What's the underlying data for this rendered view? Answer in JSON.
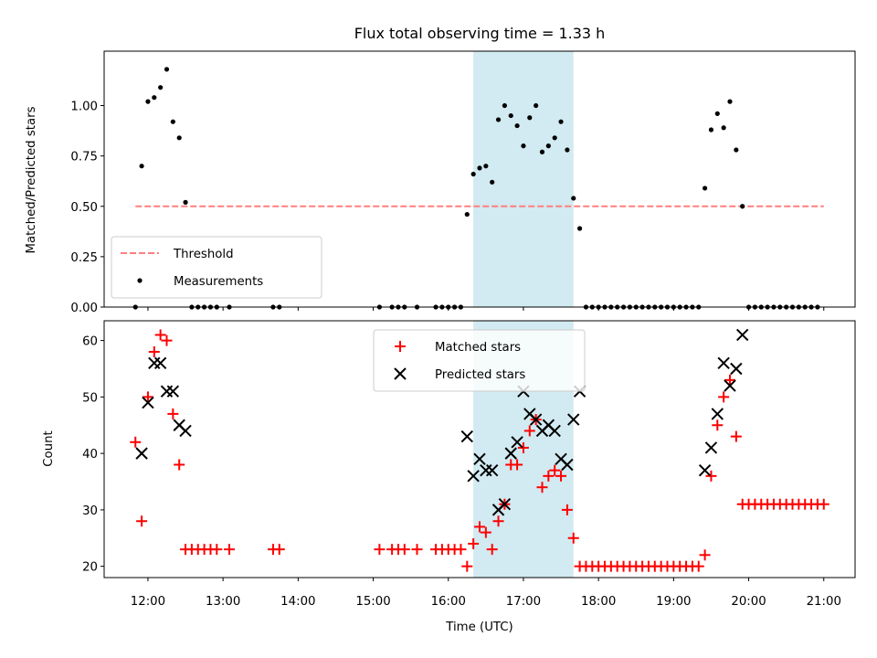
{
  "chart_data": [
    {
      "type": "scatter",
      "title": "Flux total observing time = 1.33 h",
      "xlabel": "",
      "ylabel": "Matched/Predicted stars",
      "xlim": [
        "11:25",
        "21:25"
      ],
      "ylim": [
        0,
        1.27
      ],
      "yticks": [
        "0.00",
        "0.25",
        "0.50",
        "0.75",
        "1.00"
      ],
      "highlight_span": {
        "x_start": "16:20",
        "x_end": "17:40",
        "color": "#add8e6"
      },
      "threshold": {
        "name": "Threshold",
        "y": 0.5,
        "x_start": "11:50",
        "x_end": "21:00",
        "color": "#ff7f7f",
        "style": "dashed"
      },
      "legend": {
        "placement": "lower-left",
        "entries": [
          "Threshold",
          "Measurements"
        ]
      },
      "series": [
        {
          "name": "Measurements",
          "color": "#000000",
          "marker": "dot",
          "points": [
            [
              "11:50",
              0.0
            ],
            [
              "11:55",
              0.7
            ],
            [
              "12:00",
              1.02
            ],
            [
              "12:05",
              1.04
            ],
            [
              "12:10",
              1.09
            ],
            [
              "12:15",
              1.18
            ],
            [
              "12:20",
              0.92
            ],
            [
              "12:25",
              0.84
            ],
            [
              "12:30",
              0.52
            ],
            [
              "12:35",
              0.0
            ],
            [
              "12:40",
              0.0
            ],
            [
              "12:45",
              0.0
            ],
            [
              "12:50",
              0.0
            ],
            [
              "12:55",
              0.0
            ],
            [
              "13:05",
              0.0
            ],
            [
              "13:40",
              0.0
            ],
            [
              "13:45",
              0.0
            ],
            [
              "15:05",
              0.0
            ],
            [
              "15:15",
              0.0
            ],
            [
              "15:20",
              0.0
            ],
            [
              "15:25",
              0.0
            ],
            [
              "15:35",
              0.0
            ],
            [
              "15:50",
              0.0
            ],
            [
              "15:55",
              0.0
            ],
            [
              "16:00",
              0.0
            ],
            [
              "16:05",
              0.0
            ],
            [
              "16:10",
              0.0
            ],
            [
              "16:15",
              0.46
            ],
            [
              "16:20",
              0.66
            ],
            [
              "16:25",
              0.69
            ],
            [
              "16:30",
              0.7
            ],
            [
              "16:35",
              0.62
            ],
            [
              "16:40",
              0.93
            ],
            [
              "16:45",
              1.0
            ],
            [
              "16:50",
              0.95
            ],
            [
              "16:55",
              0.9
            ],
            [
              "17:00",
              0.8
            ],
            [
              "17:05",
              0.94
            ],
            [
              "17:10",
              1.0
            ],
            [
              "17:15",
              0.77
            ],
            [
              "17:20",
              0.8
            ],
            [
              "17:25",
              0.84
            ],
            [
              "17:30",
              0.92
            ],
            [
              "17:35",
              0.78
            ],
            [
              "17:40",
              0.54
            ],
            [
              "17:45",
              0.39
            ],
            [
              "17:50",
              0.0
            ],
            [
              "17:55",
              0.0
            ],
            [
              "18:00",
              0.0
            ],
            [
              "18:05",
              0.0
            ],
            [
              "18:10",
              0.0
            ],
            [
              "18:15",
              0.0
            ],
            [
              "18:20",
              0.0
            ],
            [
              "18:25",
              0.0
            ],
            [
              "18:30",
              0.0
            ],
            [
              "18:35",
              0.0
            ],
            [
              "18:40",
              0.0
            ],
            [
              "18:45",
              0.0
            ],
            [
              "18:50",
              0.0
            ],
            [
              "18:55",
              0.0
            ],
            [
              "19:00",
              0.0
            ],
            [
              "19:05",
              0.0
            ],
            [
              "19:10",
              0.0
            ],
            [
              "19:15",
              0.0
            ],
            [
              "19:20",
              0.0
            ],
            [
              "19:25",
              0.59
            ],
            [
              "19:30",
              0.88
            ],
            [
              "19:35",
              0.96
            ],
            [
              "19:40",
              0.89
            ],
            [
              "19:45",
              1.02
            ],
            [
              "19:50",
              0.78
            ],
            [
              "19:55",
              0.5
            ],
            [
              "20:00",
              0.0
            ],
            [
              "20:05",
              0.0
            ],
            [
              "20:10",
              0.0
            ],
            [
              "20:15",
              0.0
            ],
            [
              "20:20",
              0.0
            ],
            [
              "20:25",
              0.0
            ],
            [
              "20:30",
              0.0
            ],
            [
              "20:35",
              0.0
            ],
            [
              "20:40",
              0.0
            ],
            [
              "20:45",
              0.0
            ],
            [
              "20:50",
              0.0
            ],
            [
              "20:55",
              0.0
            ]
          ]
        }
      ]
    },
    {
      "type": "scatter",
      "title": "",
      "xlabel": "Time (UTC)",
      "ylabel": "Count",
      "xlim": [
        "11:25",
        "21:25"
      ],
      "ylim": [
        18,
        63.5
      ],
      "xticks": [
        "12:00",
        "13:00",
        "14:00",
        "15:00",
        "16:00",
        "17:00",
        "18:00",
        "19:00",
        "20:00",
        "21:00"
      ],
      "yticks": [
        20,
        30,
        40,
        50,
        60
      ],
      "highlight_span": {
        "x_start": "16:20",
        "x_end": "17:40",
        "color": "#add8e6"
      },
      "legend": {
        "placement": "upper-center",
        "entries": [
          "Matched stars",
          "Predicted stars"
        ]
      },
      "series": [
        {
          "name": "Matched stars",
          "color": "#ff0000",
          "marker": "plus",
          "points": [
            [
              "11:50",
              42
            ],
            [
              "11:55",
              28
            ],
            [
              "12:00",
              50
            ],
            [
              "12:05",
              58
            ],
            [
              "12:10",
              61
            ],
            [
              "12:15",
              60
            ],
            [
              "12:20",
              47
            ],
            [
              "12:25",
              38
            ],
            [
              "12:30",
              23
            ],
            [
              "12:35",
              23
            ],
            [
              "12:40",
              23
            ],
            [
              "12:45",
              23
            ],
            [
              "12:50",
              23
            ],
            [
              "12:55",
              23
            ],
            [
              "13:05",
              23
            ],
            [
              "13:40",
              23
            ],
            [
              "13:45",
              23
            ],
            [
              "15:05",
              23
            ],
            [
              "15:15",
              23
            ],
            [
              "15:20",
              23
            ],
            [
              "15:25",
              23
            ],
            [
              "15:35",
              23
            ],
            [
              "15:50",
              23
            ],
            [
              "15:55",
              23
            ],
            [
              "16:00",
              23
            ],
            [
              "16:05",
              23
            ],
            [
              "16:10",
              23
            ],
            [
              "16:15",
              20
            ],
            [
              "16:20",
              24
            ],
            [
              "16:25",
              27
            ],
            [
              "16:30",
              26
            ],
            [
              "16:35",
              23
            ],
            [
              "16:40",
              28
            ],
            [
              "16:45",
              31
            ],
            [
              "16:50",
              38
            ],
            [
              "16:55",
              38
            ],
            [
              "17:00",
              41
            ],
            [
              "17:05",
              44
            ],
            [
              "17:10",
              46
            ],
            [
              "17:15",
              34
            ],
            [
              "17:20",
              36
            ],
            [
              "17:25",
              37
            ],
            [
              "17:30",
              36
            ],
            [
              "17:35",
              30
            ],
            [
              "17:40",
              25
            ],
            [
              "17:45",
              20
            ],
            [
              "17:50",
              20
            ],
            [
              "17:55",
              20
            ],
            [
              "18:00",
              20
            ],
            [
              "18:05",
              20
            ],
            [
              "18:10",
              20
            ],
            [
              "18:15",
              20
            ],
            [
              "18:20",
              20
            ],
            [
              "18:25",
              20
            ],
            [
              "18:30",
              20
            ],
            [
              "18:35",
              20
            ],
            [
              "18:40",
              20
            ],
            [
              "18:45",
              20
            ],
            [
              "18:50",
              20
            ],
            [
              "18:55",
              20
            ],
            [
              "19:00",
              20
            ],
            [
              "19:05",
              20
            ],
            [
              "19:10",
              20
            ],
            [
              "19:15",
              20
            ],
            [
              "19:20",
              20
            ],
            [
              "19:25",
              22
            ],
            [
              "19:30",
              36
            ],
            [
              "19:35",
              45
            ],
            [
              "19:40",
              50
            ],
            [
              "19:45",
              53
            ],
            [
              "19:50",
              43
            ],
            [
              "19:55",
              31
            ],
            [
              "20:00",
              31
            ],
            [
              "20:05",
              31
            ],
            [
              "20:10",
              31
            ],
            [
              "20:15",
              31
            ],
            [
              "20:20",
              31
            ],
            [
              "20:25",
              31
            ],
            [
              "20:30",
              31
            ],
            [
              "20:35",
              31
            ],
            [
              "20:40",
              31
            ],
            [
              "20:45",
              31
            ],
            [
              "20:50",
              31
            ],
            [
              "20:55",
              31
            ],
            [
              "21:00",
              31
            ]
          ]
        },
        {
          "name": "Predicted stars",
          "color": "#000000",
          "marker": "x",
          "points": [
            [
              "11:55",
              40
            ],
            [
              "12:00",
              49
            ],
            [
              "12:05",
              56
            ],
            [
              "12:10",
              56
            ],
            [
              "12:15",
              51
            ],
            [
              "12:20",
              51
            ],
            [
              "12:25",
              45
            ],
            [
              "12:30",
              44
            ],
            [
              "16:15",
              43
            ],
            [
              "16:20",
              36
            ],
            [
              "16:25",
              39
            ],
            [
              "16:30",
              37
            ],
            [
              "16:35",
              37
            ],
            [
              "16:40",
              30
            ],
            [
              "16:45",
              31
            ],
            [
              "16:50",
              40
            ],
            [
              "16:55",
              42
            ],
            [
              "17:00",
              51
            ],
            [
              "17:05",
              47
            ],
            [
              "17:10",
              46
            ],
            [
              "17:15",
              44
            ],
            [
              "17:20",
              45
            ],
            [
              "17:25",
              44
            ],
            [
              "17:30",
              39
            ],
            [
              "17:35",
              38
            ],
            [
              "17:40",
              46
            ],
            [
              "17:45",
              51
            ],
            [
              "19:25",
              37
            ],
            [
              "19:30",
              41
            ],
            [
              "19:35",
              47
            ],
            [
              "19:40",
              56
            ],
            [
              "19:45",
              52
            ],
            [
              "19:50",
              55
            ],
            [
              "19:55",
              61
            ]
          ]
        }
      ]
    }
  ]
}
